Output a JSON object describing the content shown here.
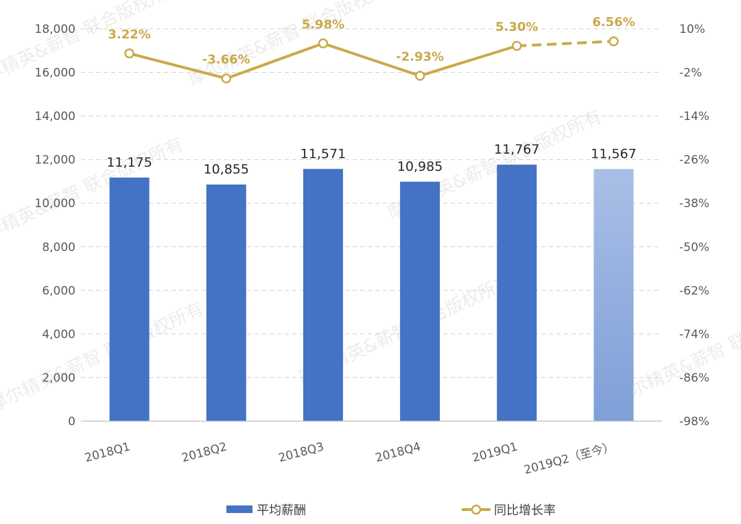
{
  "chart_data": {
    "type": "bar",
    "categories": [
      "2018Q1",
      "2018Q2",
      "2018Q3",
      "2018Q4",
      "2019Q1",
      "2019Q2（至今）"
    ],
    "series": [
      {
        "name": "平均薪酬",
        "type": "bar",
        "axis": "left",
        "values": [
          11175,
          10855,
          11571,
          10985,
          11767,
          11567
        ],
        "labels": [
          "11,175",
          "10,855",
          "11,571",
          "10,985",
          "11,767",
          "11,567"
        ],
        "color": "#4472c4",
        "highlight_last_color": "#a9bfe6"
      },
      {
        "name": "同比增长率",
        "type": "line",
        "axis": "right",
        "values": [
          3.22,
          -3.66,
          5.98,
          -2.93,
          5.3,
          6.56
        ],
        "labels": [
          "3.22%",
          "-3.66%",
          "5.98%",
          "-2.93%",
          "5.30%",
          "6.56%"
        ],
        "color": "#c9a94a",
        "last_segment_dashed": true
      }
    ],
    "y_left": {
      "ylim": [
        0,
        18000
      ],
      "ticks": [
        0,
        2000,
        4000,
        6000,
        8000,
        10000,
        12000,
        14000,
        16000,
        18000
      ],
      "tick_labels": [
        "0",
        "2,000",
        "4,000",
        "6,000",
        "8,000",
        "10,000",
        "12,000",
        "14,000",
        "16,000",
        "18,000"
      ]
    },
    "y_right": {
      "ylim": [
        -98,
        10
      ],
      "ticks": [
        -98,
        -86,
        -74,
        -62,
        -50,
        -38,
        -26,
        -14,
        -2,
        10
      ],
      "tick_labels": [
        "-98%",
        "-86%",
        "-74%",
        "-62%",
        "-50%",
        "-38%",
        "-26%",
        "-14%",
        "-2%",
        "10%"
      ]
    },
    "grid": true,
    "legend_position": "bottom"
  },
  "watermark_text": "摩尔精英&薪智 联合版权所有"
}
